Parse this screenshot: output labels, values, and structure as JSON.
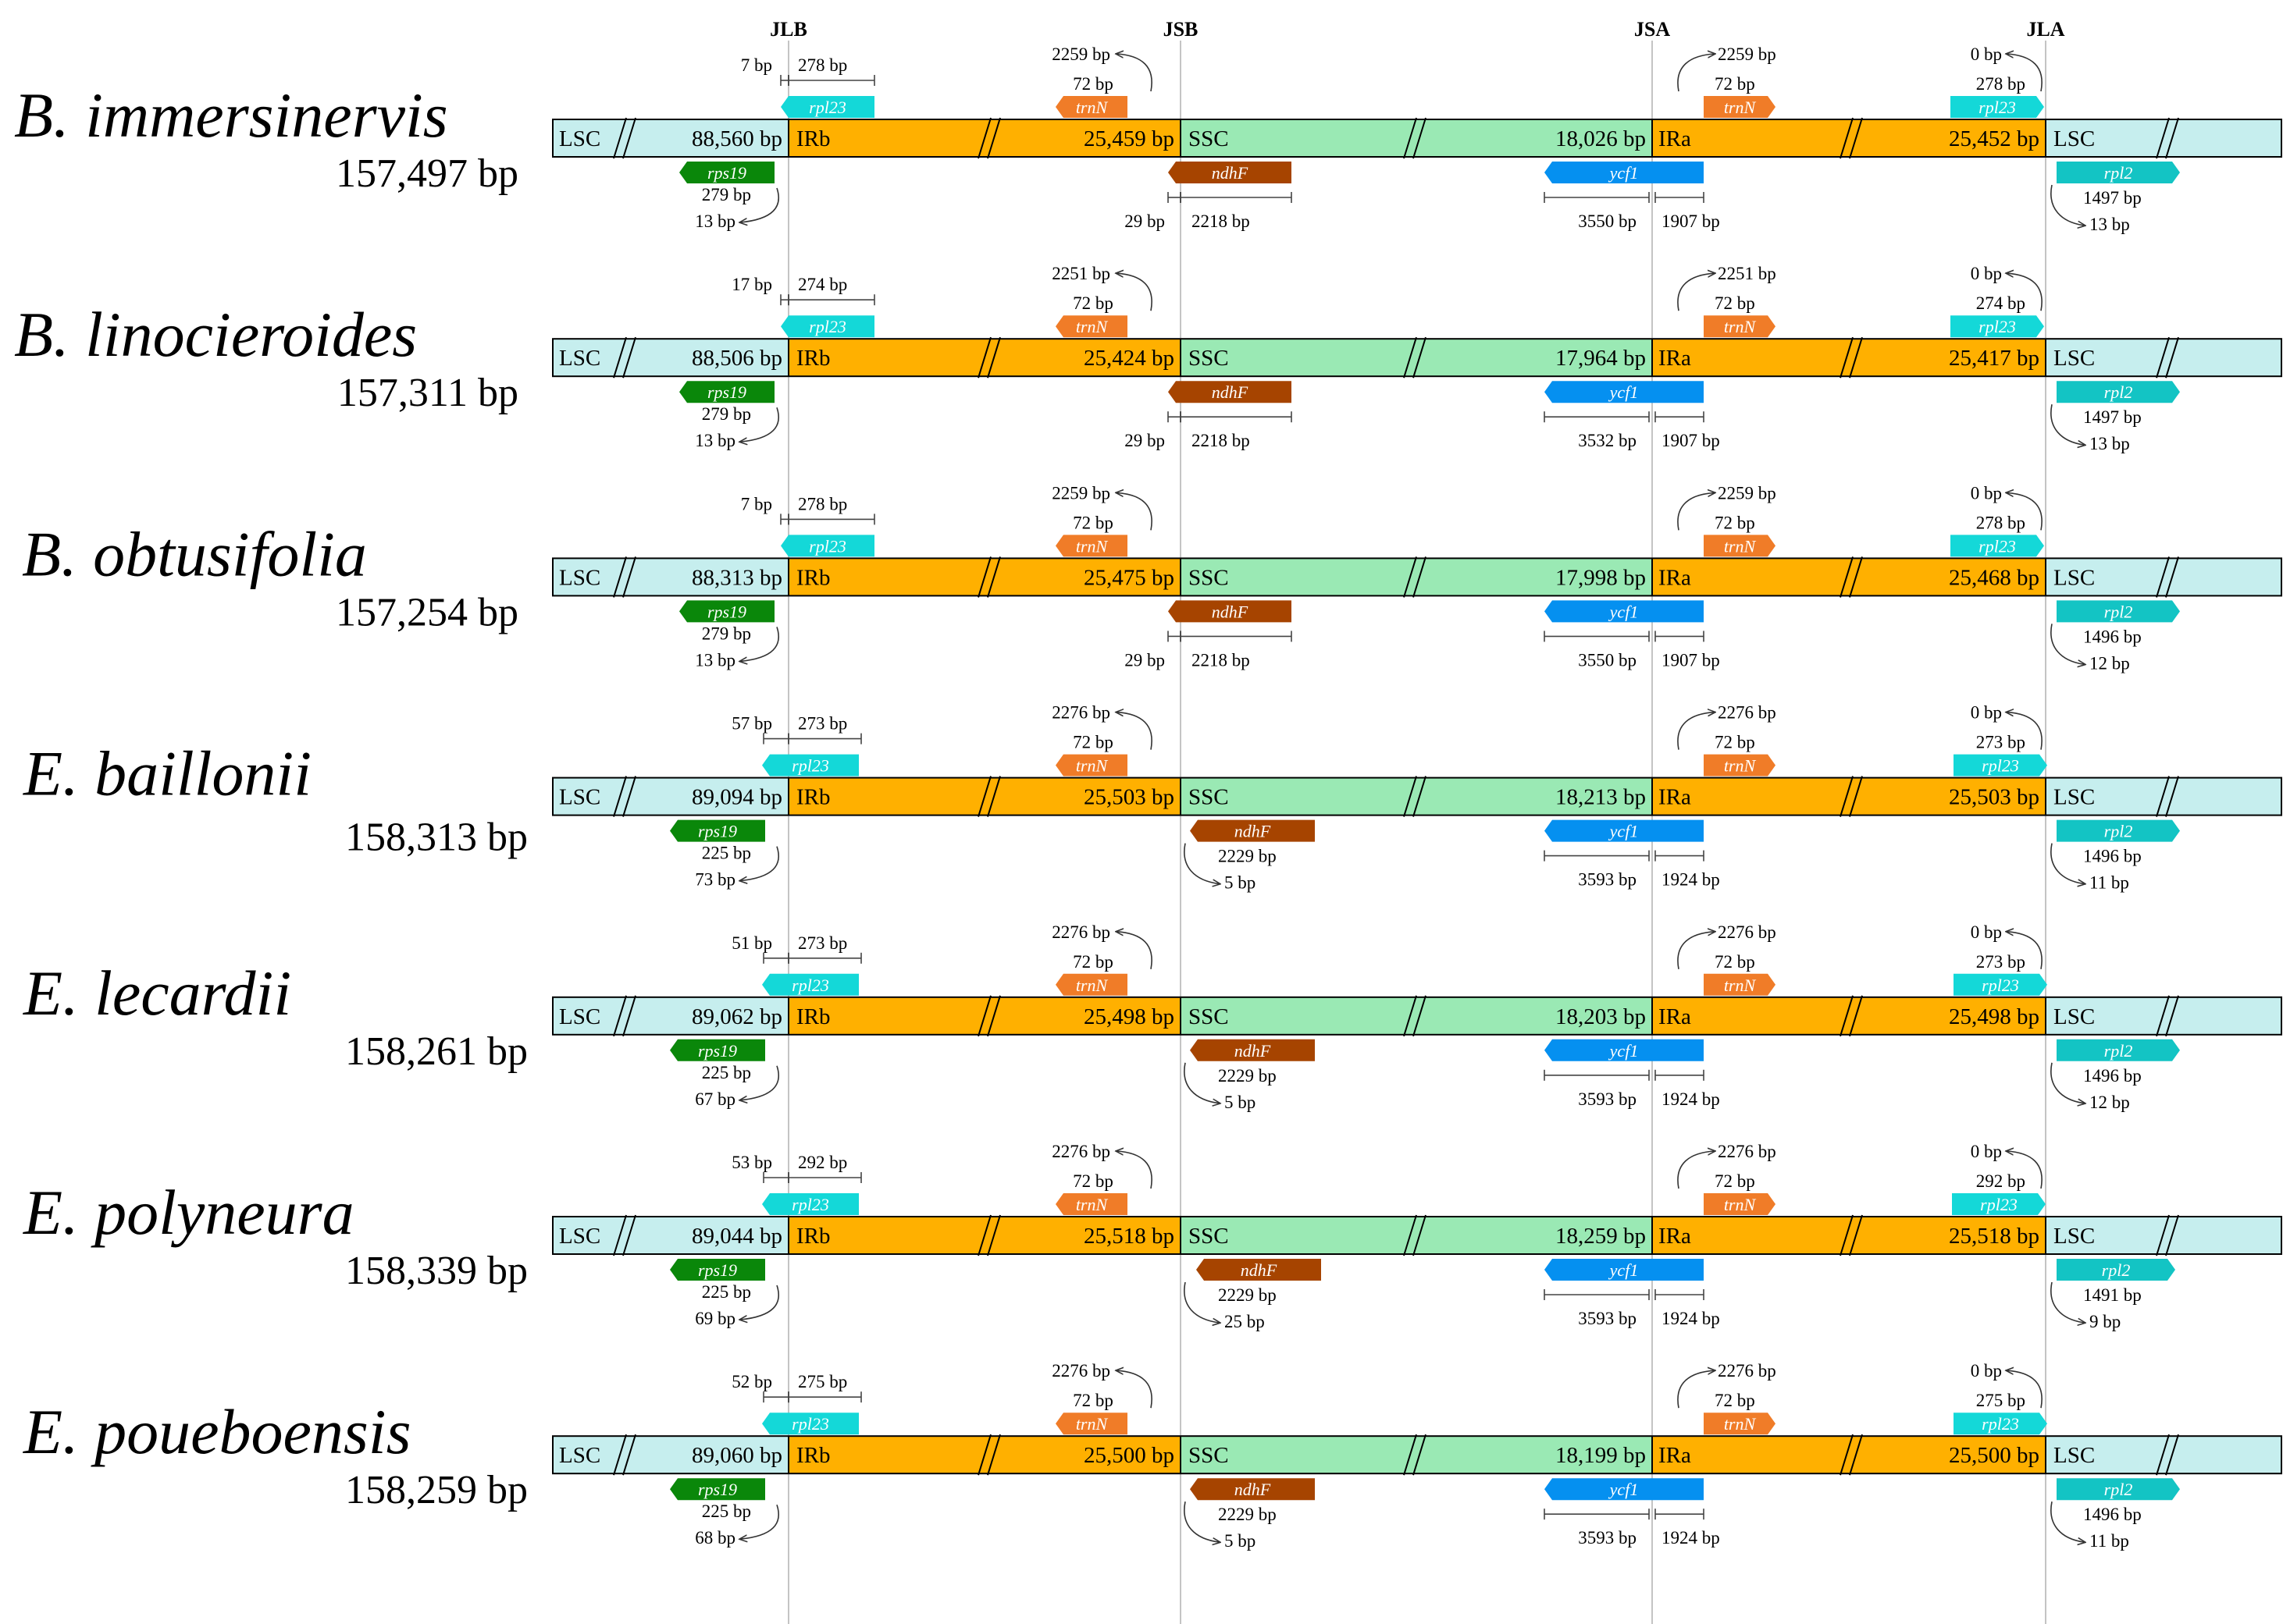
{
  "palette": {
    "lsc": "#c6eeee",
    "ir": "#ffb000",
    "ssc": "#9ae9b4",
    "rps19": "#0a870a",
    "rpl23": "#14d8d8",
    "trnN": "#f07c28",
    "ndhF": "#a64400",
    "ycf1": "#0590f0",
    "rpl2": "#13c4c4",
    "junction_line": "#c4c4c4",
    "outline": "#000000"
  },
  "junctions": [
    "JLB",
    "JSB",
    "JSA",
    "JLA"
  ],
  "regions": {
    "lsc": "LSC",
    "irb": "IRb",
    "ssc": "SSC",
    "ira": "IRa"
  },
  "genes": {
    "rps19": "rps19",
    "rpl23": "rpl23",
    "trnN": "trnN",
    "ndhF": "ndhF",
    "ycf1": "ycf1",
    "rpl2": "rpl2"
  },
  "species": [
    {
      "name": "B. immersinervis",
      "total": "157,497 bp",
      "lsc_len": "88,560 bp",
      "irb_len": "25,459 bp",
      "ssc_len": "18,026 bp",
      "ira_len": "25,452 bp",
      "rpl23_left": "7 bp",
      "rpl23_right": "278 bp",
      "trnN_b_dist": "2259 bp",
      "trnN_b_len": "72 bp",
      "rps19_len": "279 bp",
      "rps19_over": "13 bp",
      "ndhF_type": "A",
      "ndhF_dist": "29 bp",
      "ndhF_len": "2218 bp",
      "ycf1_left": "3550 bp",
      "ycf1_right": "1907 bp",
      "trnN_a_dist": "2259 bp",
      "trnN_a_len": "72 bp",
      "rpl23_a_dist": "0 bp",
      "rpl23_a_len": "278 bp",
      "rpl2_len": "1497 bp",
      "rpl2_dist": "13 bp"
    },
    {
      "name": "B. linocieroides",
      "total": "157,311 bp",
      "lsc_len": "88,506 bp",
      "irb_len": "25,424 bp",
      "ssc_len": "17,964 bp",
      "ira_len": "25,417 bp",
      "rpl23_left": "17 bp",
      "rpl23_right": "274 bp",
      "trnN_b_dist": "2251 bp",
      "trnN_b_len": "72 bp",
      "rps19_len": "279 bp",
      "rps19_over": "13 bp",
      "ndhF_type": "A",
      "ndhF_dist": "29 bp",
      "ndhF_len": "2218 bp",
      "ycf1_left": "3532 bp",
      "ycf1_right": "1907 bp",
      "trnN_a_dist": "2251 bp",
      "trnN_a_len": "72 bp",
      "rpl23_a_dist": "0 bp",
      "rpl23_a_len": "274 bp",
      "rpl2_len": "1497 bp",
      "rpl2_dist": "13 bp"
    },
    {
      "name": "B. obtusifolia",
      "total": "157,254 bp",
      "lsc_len": "88,313 bp",
      "irb_len": "25,475 bp",
      "ssc_len": "17,998 bp",
      "ira_len": "25,468 bp",
      "rpl23_left": "7 bp",
      "rpl23_right": "278 bp",
      "trnN_b_dist": "2259 bp",
      "trnN_b_len": "72 bp",
      "rps19_len": "279 bp",
      "rps19_over": "13 bp",
      "ndhF_type": "A",
      "ndhF_dist": "29 bp",
      "ndhF_len": "2218 bp",
      "ycf1_left": "3550 bp",
      "ycf1_right": "1907 bp",
      "trnN_a_dist": "2259 bp",
      "trnN_a_len": "72 bp",
      "rpl23_a_dist": "0 bp",
      "rpl23_a_len": "278 bp",
      "rpl2_len": "1496 bp",
      "rpl2_dist": "12 bp"
    },
    {
      "name": "E. baillonii",
      "total": "158,313 bp",
      "lsc_len": "89,094 bp",
      "irb_len": "25,503 bp",
      "ssc_len": "18,213 bp",
      "ira_len": "25,503 bp",
      "rpl23_left": "57 bp",
      "rpl23_right": "273 bp",
      "trnN_b_dist": "2276 bp",
      "trnN_b_len": "72 bp",
      "rps19_len": "225 bp",
      "rps19_over": "73 bp",
      "ndhF_type": "B",
      "ndhF_dist": "5 bp",
      "ndhF_len": "2229 bp",
      "ycf1_left": "3593 bp",
      "ycf1_right": "1924 bp",
      "trnN_a_dist": "2276 bp",
      "trnN_a_len": "72 bp",
      "rpl23_a_dist": "0 bp",
      "rpl23_a_len": "273 bp",
      "rpl2_len": "1496 bp",
      "rpl2_dist": "11 bp"
    },
    {
      "name": "E. lecardii",
      "total": "158,261 bp",
      "lsc_len": "89,062 bp",
      "irb_len": "25,498 bp",
      "ssc_len": "18,203 bp",
      "ira_len": "25,498 bp",
      "rpl23_left": "51 bp",
      "rpl23_right": "273 bp",
      "trnN_b_dist": "2276 bp",
      "trnN_b_len": "72 bp",
      "rps19_len": "225 bp",
      "rps19_over": "67 bp",
      "ndhF_type": "B",
      "ndhF_dist": "5 bp",
      "ndhF_len": "2229 bp",
      "ycf1_left": "3593 bp",
      "ycf1_right": "1924 bp",
      "trnN_a_dist": "2276 bp",
      "trnN_a_len": "72 bp",
      "rpl23_a_dist": "0 bp",
      "rpl23_a_len": "273 bp",
      "rpl2_len": "1496 bp",
      "rpl2_dist": "12 bp"
    },
    {
      "name": "E. polyneura",
      "total": "158,339 bp",
      "lsc_len": "89,044 bp",
      "irb_len": "25,518 bp",
      "ssc_len": "18,259 bp",
      "ira_len": "25,518 bp",
      "rpl23_left": "53 bp",
      "rpl23_right": "292 bp",
      "trnN_b_dist": "2276 bp",
      "trnN_b_len": "72 bp",
      "rps19_len": "225 bp",
      "rps19_over": "69 bp",
      "ndhF_type": "B",
      "ndhF_dist": "25 bp",
      "ndhF_len": "2229 bp",
      "ycf1_left": "3593 bp",
      "ycf1_right": "1924 bp",
      "trnN_a_dist": "2276 bp",
      "trnN_a_len": "72 bp",
      "rpl23_a_dist": "0 bp",
      "rpl23_a_len": "292 bp",
      "rpl2_len": "1491 bp",
      "rpl2_dist": "9 bp"
    },
    {
      "name": "E. poueboensis",
      "total": "158,259 bp",
      "lsc_len": "89,060 bp",
      "irb_len": "25,500 bp",
      "ssc_len": "18,199 bp",
      "ira_len": "25,500 bp",
      "rpl23_left": "52 bp",
      "rpl23_right": "275 bp",
      "trnN_b_dist": "2276 bp",
      "trnN_b_len": "72 bp",
      "rps19_len": "225 bp",
      "rps19_over": "68 bp",
      "ndhF_type": "B",
      "ndhF_dist": "5 bp",
      "ndhF_len": "2229 bp",
      "ycf1_left": "3593 bp",
      "ycf1_right": "1924 bp",
      "trnN_a_dist": "2276 bp",
      "trnN_a_len": "72 bp",
      "rpl23_a_dist": "0 bp",
      "rpl23_a_len": "275 bp",
      "rpl2_len": "1496 bp",
      "rpl2_dist": "11 bp"
    }
  ]
}
